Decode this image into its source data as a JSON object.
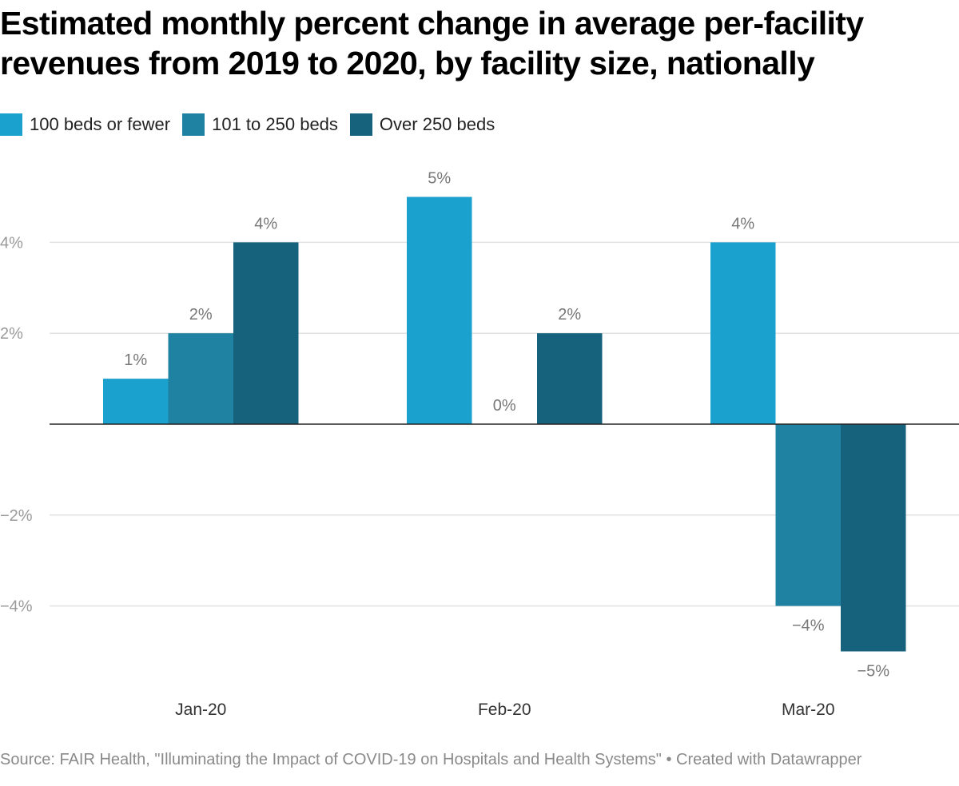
{
  "title": "Estimated monthly percent change in average per-facility revenues from 2019 to 2020, by facility size, nationally",
  "source": "Source: FAIR Health, \"Illuminating the Impact of COVID-19 on Hospitals and Health Systems\" • Created with Datawrapper",
  "legend": [
    {
      "label": "100 beds or fewer",
      "color": "#1aa1ce"
    },
    {
      "label": "101 to 250 beds",
      "color": "#1f82a2"
    },
    {
      "label": "Over 250 beds",
      "color": "#16627d"
    }
  ],
  "chart_data": {
    "type": "bar",
    "categories": [
      "Jan-20",
      "Feb-20",
      "Mar-20"
    ],
    "series": [
      {
        "name": "100 beds or fewer",
        "values": [
          1,
          5,
          4
        ],
        "labels": [
          "1%",
          "5%",
          "4%"
        ],
        "color": "#1aa1ce"
      },
      {
        "name": "101 to 250 beds",
        "values": [
          2,
          0,
          -4
        ],
        "labels": [
          "2%",
          "0%",
          "−4%"
        ],
        "color": "#1f82a2"
      },
      {
        "name": "Over 250 beds",
        "values": [
          4,
          2,
          -5
        ],
        "labels": [
          "4%",
          "2%",
          "−5%"
        ],
        "color": "#16627d"
      }
    ],
    "yticks": [
      4,
      2,
      -2,
      -4
    ],
    "ytick_labels": [
      "4%",
      "2%",
      "−2%",
      "−4%"
    ],
    "ylim": [
      -6,
      6
    ],
    "grid": true,
    "legend_position": "top-left"
  }
}
